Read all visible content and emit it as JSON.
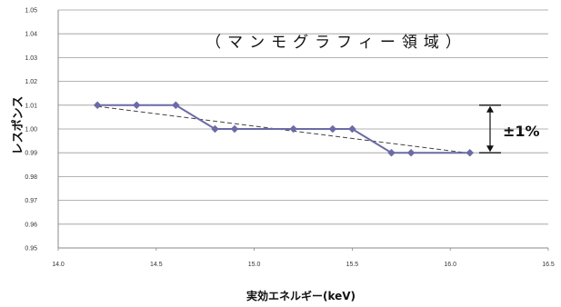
{
  "chart_data": {
    "type": "line",
    "title": "（マンモグラフィー領域）",
    "xlabel": "実効エネルギー(keV)",
    "ylabel": "レスポンス",
    "xlim": [
      14.0,
      16.5
    ],
    "ylim": [
      0.95,
      1.05
    ],
    "x_ticks": [
      "14.0",
      "14.5",
      "15.0",
      "15.5",
      "16.0",
      "16.5"
    ],
    "y_ticks": [
      "1.05",
      "1.04",
      "1.03",
      "1.02",
      "1.01",
      "1.00",
      "0.99",
      "0.98",
      "0.97",
      "0.96",
      "0.95"
    ],
    "grid": "horizontal",
    "series": [
      {
        "color": "#6b6ba6",
        "marker": "diamond",
        "x": [
          14.2,
          14.4,
          14.6,
          14.8,
          14.9,
          15.2,
          15.4,
          15.5,
          15.7,
          15.8,
          16.1
        ],
        "y": [
          1.01,
          1.01,
          1.01,
          1.0,
          1.0,
          1.0,
          1.0,
          1.0,
          0.99,
          0.99,
          0.99
        ]
      }
    ],
    "trendline": {
      "style": "dashed",
      "color": "#444444",
      "x": [
        14.2,
        16.1
      ],
      "y": [
        1.0095,
        0.9898
      ]
    },
    "annotation": {
      "text": "±1%",
      "range": [
        0.99,
        1.01
      ]
    }
  }
}
